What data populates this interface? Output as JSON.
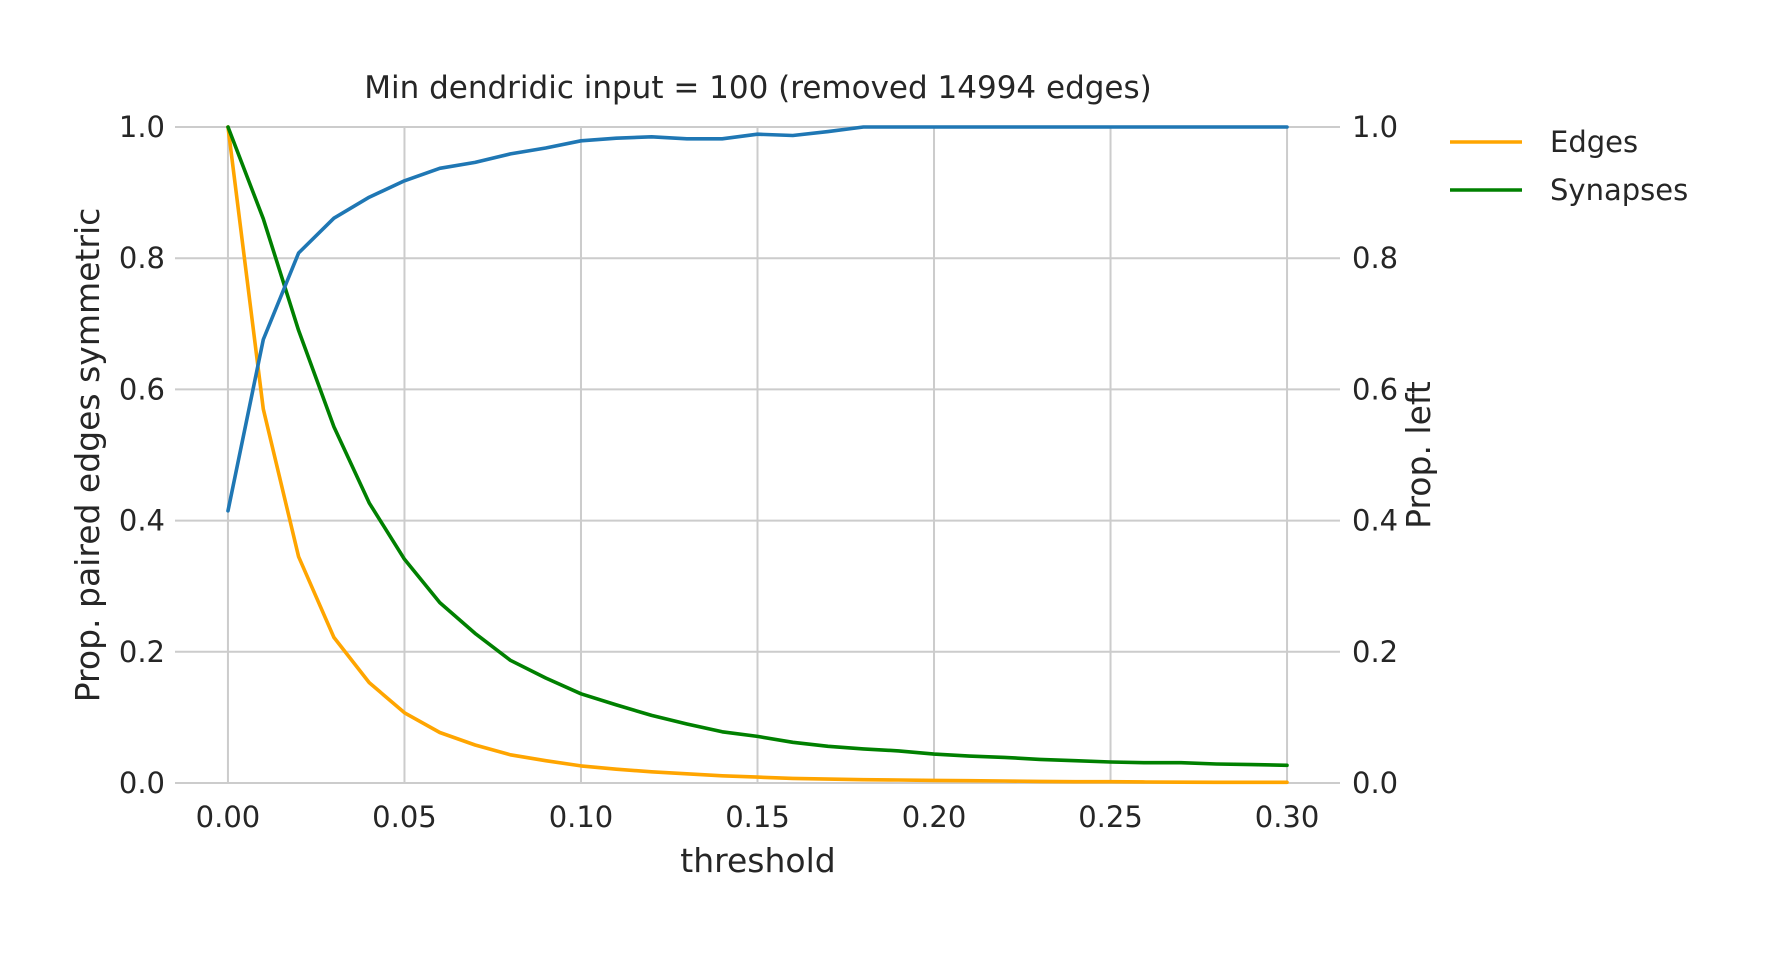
{
  "chart_data": {
    "type": "line",
    "title": "Min dendridic input = 100 (removed 14994 edges)",
    "xlabel": "threshold",
    "ylabel_left": "Prop. paired edges symmetric",
    "ylabel_right": "Prop. left",
    "xlim": [
      -0.015,
      0.315
    ],
    "ylim_left": [
      0.0,
      1.0
    ],
    "ylim_right": [
      0.0,
      1.0
    ],
    "x_ticks": [
      "0.00",
      "0.05",
      "0.10",
      "0.15",
      "0.20",
      "0.25",
      "0.30"
    ],
    "y_ticks_left": [
      "0.0",
      "0.2",
      "0.4",
      "0.6",
      "0.8",
      "1.0"
    ],
    "y_ticks_right": [
      "0.0",
      "0.2",
      "0.4",
      "0.6",
      "0.8",
      "1.0"
    ],
    "grid": true,
    "legend_position": "outside-top-right",
    "x": [
      0.0,
      0.01,
      0.02,
      0.03,
      0.04,
      0.05,
      0.06,
      0.07,
      0.08,
      0.09,
      0.1,
      0.11,
      0.12,
      0.13,
      0.14,
      0.15,
      0.16,
      0.17,
      0.18,
      0.19,
      0.2,
      0.21,
      0.22,
      0.23,
      0.24,
      0.25,
      0.26,
      0.27,
      0.28,
      0.29,
      0.3
    ],
    "series": [
      {
        "name": "Edges",
        "axis": "left",
        "color": "#ffa500",
        "values": [
          1.0,
          0.57,
          0.345,
          0.222,
          0.153,
          0.107,
          0.077,
          0.058,
          0.043,
          0.034,
          0.026,
          0.021,
          0.017,
          0.014,
          0.011,
          0.009,
          0.007,
          0.006,
          0.005,
          0.0045,
          0.004,
          0.0035,
          0.003,
          0.0025,
          0.002,
          0.002,
          0.0015,
          0.0012,
          0.001,
          0.001,
          0.001
        ]
      },
      {
        "name": "Synapses",
        "axis": "left",
        "color": "#008000",
        "values": [
          1.0,
          0.86,
          0.69,
          0.543,
          0.427,
          0.341,
          0.275,
          0.228,
          0.187,
          0.16,
          0.136,
          0.119,
          0.103,
          0.09,
          0.078,
          0.071,
          0.062,
          0.056,
          0.052,
          0.049,
          0.044,
          0.041,
          0.039,
          0.036,
          0.034,
          0.032,
          0.031,
          0.031,
          0.029,
          0.028,
          0.027
        ]
      },
      {
        "name": "",
        "axis": "right",
        "color": "#1f77b4",
        "values": [
          0.415,
          0.676,
          0.808,
          0.861,
          0.893,
          0.918,
          0.937,
          0.946,
          0.959,
          0.968,
          0.979,
          0.983,
          0.985,
          0.982,
          0.982,
          0.989,
          0.987,
          0.993,
          1.0,
          1.0,
          1.0,
          1.0,
          1.0,
          1.0,
          1.0,
          1.0,
          1.0,
          1.0,
          1.0,
          1.0,
          1.0
        ]
      }
    ]
  }
}
